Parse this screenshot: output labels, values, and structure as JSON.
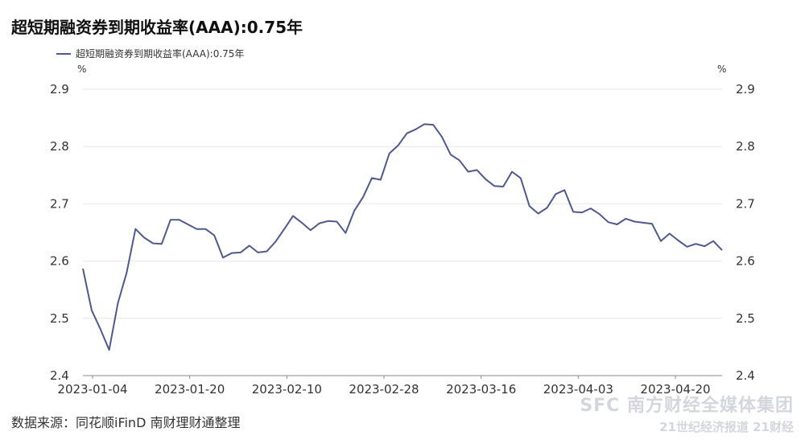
{
  "title": "超短期融资券到期收益率(AAA):0.75年",
  "source": "数据来源：同花顺iFinD 南财理财通整理",
  "watermark": {
    "line1": "SFC 南方财经全媒体集团",
    "line2": "21世纪经济报道 21财经"
  },
  "colors": {
    "line": "#4e5a8f",
    "grid": "#e6e6e6",
    "axis": "#888888",
    "text": "#333333"
  },
  "chart_data": {
    "type": "line",
    "title": "超短期融资券到期收益率(AAA):0.75年",
    "ylabel_left": "%",
    "ylabel_right": "%",
    "ylim": [
      2.4,
      2.9
    ],
    "yticks": [
      2.4,
      2.5,
      2.6,
      2.7,
      2.8,
      2.9
    ],
    "y_tick_labels": [
      "2.4",
      "2.5",
      "2.6",
      "2.7",
      "2.8",
      "2.9"
    ],
    "x_tick_labels": [
      "2023-01-04",
      "2023-01-20",
      "2023-02-10",
      "2023-02-28",
      "2023-03-16",
      "2023-04-03",
      "2023-04-20"
    ],
    "legend_position": "top-left",
    "grid": true,
    "series": [
      {
        "name": "超短期融资券到期收益率(AAA):0.75年",
        "values": [
          2.587,
          2.514,
          2.481,
          2.445,
          2.527,
          2.58,
          2.656,
          2.641,
          2.631,
          2.63,
          2.672,
          2.672,
          2.664,
          2.656,
          2.656,
          2.645,
          2.606,
          2.614,
          2.615,
          2.627,
          2.615,
          2.617,
          2.634,
          2.656,
          2.679,
          2.667,
          2.654,
          2.666,
          2.67,
          2.669,
          2.649,
          2.688,
          2.712,
          2.745,
          2.742,
          2.788,
          2.802,
          2.823,
          2.83,
          2.839,
          2.838,
          2.817,
          2.786,
          2.776,
          2.756,
          2.759,
          2.743,
          2.731,
          2.73,
          2.756,
          2.745,
          2.696,
          2.683,
          2.693,
          2.717,
          2.724,
          2.686,
          2.685,
          2.692,
          2.682,
          2.668,
          2.664,
          2.674,
          2.669,
          2.667,
          2.665,
          2.635,
          2.648,
          2.636,
          2.625,
          2.63,
          2.626,
          2.635,
          2.619
        ]
      }
    ]
  }
}
